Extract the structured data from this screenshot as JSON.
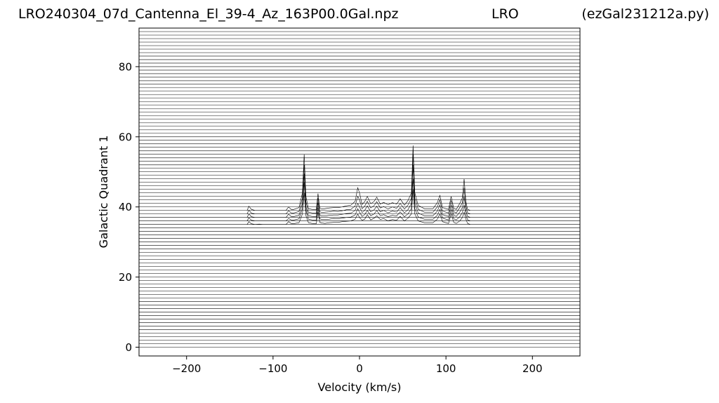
{
  "title": {
    "left": "LRO240304_07d_Cantenna_El_39-4_Az_163P00.0Gal.npz",
    "center": "LRO",
    "right": "(ezGal231212a.py)"
  },
  "chart_data": {
    "type": "line",
    "xlabel": "Velocity (km/s)",
    "ylabel": "Galactic Quadrant 1",
    "xlim": [
      -255,
      255
    ],
    "ylim": [
      -2.5,
      91
    ],
    "xticks": [
      -200,
      -100,
      0,
      100,
      200
    ],
    "yticks": [
      0,
      20,
      40,
      60,
      80
    ],
    "xtick_labels": [
      "−200",
      "−100",
      "0",
      "100",
      "200"
    ],
    "ytick_labels": [
      "0",
      "20",
      "40",
      "60",
      "80"
    ],
    "grid": false,
    "line_color": "#000000",
    "baseline_count": 91,
    "baseline_spacing": 1,
    "traces": [
      {
        "offset": 35,
        "x": [
          -130,
          -128,
          -125,
          -121,
          -116,
          -112,
          -85,
          -82,
          -79,
          -77,
          -70,
          -66,
          -64,
          -62,
          -59,
          -55,
          -50,
          -48,
          -46,
          -43,
          -40,
          -35,
          -30,
          -25,
          -20,
          -15,
          -10,
          -5,
          -2,
          0,
          3,
          6,
          9,
          13,
          17,
          20,
          24,
          28,
          33,
          38,
          43,
          47,
          52,
          56,
          60,
          62,
          64,
          68,
          75,
          85,
          90,
          93,
          96,
          100,
          103,
          106,
          109,
          112,
          116,
          119,
          121,
          123,
          125,
          128
        ],
        "y": [
          0,
          0.8,
          0.2,
          0,
          0.1,
          0,
          0,
          0.8,
          0.3,
          0.2,
          0.5,
          3,
          9,
          2.5,
          0.5,
          0.3,
          0.2,
          3.5,
          0.6,
          0.4,
          0.3,
          0.5,
          0.6,
          0.6,
          0.8,
          0.9,
          1,
          1.5,
          3,
          2,
          1.2,
          1.5,
          2.8,
          1.3,
          1.8,
          2.5,
          1.4,
          1.7,
          1,
          1.4,
          1.2,
          2.3,
          1,
          1.8,
          3,
          10,
          3,
          1,
          0.5,
          0.5,
          1.5,
          3,
          0.8,
          0.5,
          0.3,
          3,
          0.6,
          0.3,
          1,
          2,
          3.5,
          1.5,
          0.3,
          0
        ]
      },
      {
        "offset": 36,
        "x": [
          -130,
          -128,
          -125,
          -121,
          -116,
          -112,
          -85,
          -82,
          -79,
          -77,
          -70,
          -66,
          -64,
          -62,
          -59,
          -55,
          -50,
          -48,
          -46,
          -43,
          -40,
          -35,
          -30,
          -25,
          -20,
          -15,
          -10,
          -5,
          -2,
          0,
          3,
          6,
          9,
          13,
          17,
          20,
          24,
          28,
          33,
          38,
          43,
          47,
          52,
          56,
          60,
          62,
          64,
          68,
          75,
          85,
          90,
          93,
          96,
          100,
          103,
          106,
          109,
          112,
          116,
          119,
          121,
          123,
          125,
          128
        ],
        "y": [
          0,
          0.9,
          0.2,
          0,
          0,
          0,
          0,
          0.7,
          0.3,
          0.2,
          0.6,
          3.5,
          11,
          3,
          0.5,
          0.3,
          0.2,
          3.8,
          0.6,
          0.4,
          0.4,
          0.5,
          0.7,
          0.6,
          0.8,
          1,
          1.1,
          1.7,
          3.5,
          2.5,
          1.3,
          1.8,
          3,
          1.5,
          2,
          3,
          1.5,
          1.8,
          1.2,
          1.6,
          1.4,
          2.6,
          1.2,
          2,
          3.5,
          12,
          3.5,
          1.1,
          0.5,
          0.5,
          1.6,
          3.3,
          0.8,
          0.5,
          0.3,
          3.2,
          0.6,
          0.3,
          1.2,
          2.4,
          4.5,
          1.8,
          0.3,
          0
        ]
      },
      {
        "offset": 37,
        "x": [
          -130,
          -128,
          -125,
          -121,
          -116,
          -112,
          -85,
          -82,
          -79,
          -77,
          -70,
          -66,
          -64,
          -62,
          -59,
          -55,
          -50,
          -48,
          -46,
          -43,
          -40,
          -35,
          -30,
          -25,
          -20,
          -15,
          -10,
          -5,
          -2,
          0,
          3,
          6,
          9,
          13,
          17,
          20,
          24,
          28,
          33,
          38,
          43,
          47,
          52,
          56,
          60,
          62,
          64,
          68,
          75,
          85,
          90,
          93,
          96,
          100,
          103,
          106,
          109,
          112,
          116,
          119,
          121,
          123,
          125,
          128
        ],
        "y": [
          0,
          1,
          0.2,
          0,
          0,
          0,
          0,
          0.9,
          0.3,
          0.2,
          0.6,
          4,
          12.5,
          3,
          0.5,
          0.3,
          0.2,
          4.2,
          0.6,
          0.4,
          0.4,
          0.6,
          0.7,
          0.7,
          0.9,
          1.1,
          1.2,
          2,
          4,
          3,
          1.4,
          2,
          3.3,
          1.6,
          2.2,
          3.2,
          1.6,
          2,
          1.3,
          1.8,
          1.5,
          2.8,
          1.3,
          2.2,
          4,
          15,
          4,
          1.2,
          0.5,
          0.5,
          1.8,
          3.6,
          0.8,
          0.5,
          0.3,
          3.5,
          0.6,
          0.3,
          1.5,
          2.8,
          6,
          2,
          0.3,
          0
        ]
      },
      {
        "offset": 38,
        "x": [
          -130,
          -128,
          -125,
          -121,
          -116,
          -112,
          -85,
          -82,
          -79,
          -77,
          -70,
          -66,
          -64,
          -62,
          -59,
          -55,
          -50,
          -48,
          -46,
          -43,
          -40,
          -35,
          -30,
          -25,
          -20,
          -15,
          -10,
          -5,
          -2,
          0,
          3,
          6,
          9,
          13,
          17,
          20,
          24,
          28,
          33,
          38,
          43,
          47,
          52,
          56,
          60,
          62,
          64,
          68,
          75,
          85,
          90,
          93,
          96,
          100,
          103,
          106,
          109,
          112,
          116,
          119,
          121,
          123,
          125,
          128
        ],
        "y": [
          0,
          1.1,
          0.2,
          0,
          0,
          0,
          0,
          0.9,
          0.3,
          0.2,
          0.7,
          4.5,
          14,
          3.5,
          0.5,
          0.3,
          0.2,
          4.5,
          0.6,
          0.4,
          0.5,
          0.6,
          0.8,
          0.7,
          0.9,
          1.2,
          1.3,
          2.3,
          5,
          4,
          1.5,
          2.2,
          3.6,
          1.7,
          2.4,
          3.5,
          1.7,
          2.1,
          1.4,
          2,
          1.6,
          3,
          1.4,
          2.5,
          4.5,
          17,
          4.5,
          1.3,
          0.5,
          0.5,
          2,
          4,
          0.8,
          0.5,
          0.3,
          3.8,
          0.6,
          0.3,
          1.8,
          3.2,
          7.5,
          2.3,
          0.3,
          0
        ]
      },
      {
        "offset": 39,
        "x": [
          -130,
          -128,
          -125,
          -121,
          -116,
          -112,
          -85,
          -82,
          -79,
          -77,
          -70,
          -66,
          -64,
          -62,
          -59,
          -55,
          -50,
          -48,
          -46,
          -43,
          -40,
          -35,
          -30,
          -25,
          -20,
          -15,
          -10,
          -5,
          -2,
          0,
          3,
          6,
          9,
          13,
          17,
          20,
          24,
          28,
          33,
          38,
          43,
          47,
          52,
          56,
          60,
          62,
          64,
          68,
          75,
          85,
          90,
          93,
          96,
          100,
          103,
          106,
          109,
          112,
          116,
          119,
          121,
          123,
          125,
          128
        ],
        "y": [
          0,
          1.2,
          0.3,
          0,
          0,
          0,
          0,
          1,
          0.3,
          0.2,
          0.8,
          5,
          16,
          4,
          0.5,
          0.3,
          0.2,
          4.8,
          0.6,
          0.4,
          0.5,
          0.7,
          0.8,
          0.8,
          1,
          1.3,
          1.5,
          2.6,
          6.5,
          5,
          1.7,
          2.5,
          4,
          1.9,
          2.6,
          3.8,
          1.8,
          2.3,
          1.6,
          2.2,
          1.8,
          3.3,
          1.5,
          2.8,
          5,
          18.5,
          5,
          1.4,
          0.5,
          0.5,
          2.2,
          4.3,
          0.8,
          0.5,
          0.3,
          4,
          0.6,
          0.3,
          2,
          3.6,
          9,
          2.6,
          0.3,
          0
        ]
      }
    ]
  }
}
